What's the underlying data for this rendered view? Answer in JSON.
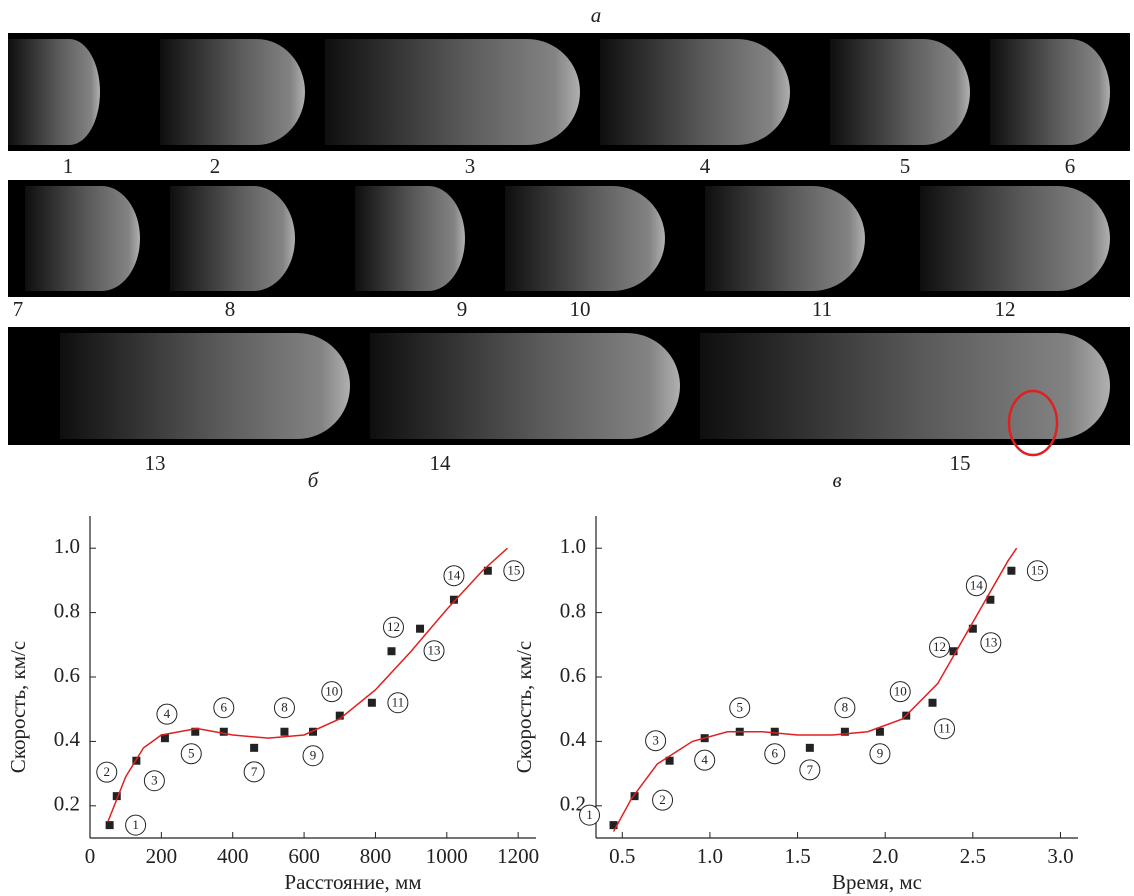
{
  "figure": {
    "panel_label": "а",
    "frame_labels": [
      "1",
      "2",
      "3",
      "4",
      "5",
      "6",
      "7",
      "8",
      "9",
      "10",
      "11",
      "12",
      "13",
      "14",
      "15"
    ]
  },
  "chart_data": [
    {
      "type": "scatter",
      "title": "б",
      "xlabel": "Расстояние, мм",
      "ylabel": "Скорость, км/с",
      "xlim": [
        0,
        1250
      ],
      "ylim": [
        0.1,
        1.1
      ],
      "xticks": [
        0,
        200,
        400,
        600,
        800,
        1000,
        1200
      ],
      "yticks": [
        0.2,
        0.4,
        0.6,
        0.8,
        {
          "value": 1,
          "label": "1.0"
        }
      ],
      "point_labels": [
        "1",
        "2",
        "3",
        "4",
        "5",
        "6",
        "7",
        "8",
        "9",
        "10",
        "11",
        "12",
        "13",
        "14",
        "15"
      ],
      "series": [
        {
          "color": "#222222",
          "marker": "square",
          "x": [
            55,
            75,
            130,
            210,
            295,
            375,
            460,
            545,
            625,
            700,
            790,
            845,
            925,
            1020,
            1115
          ],
          "values": [
            0.14,
            0.23,
            0.34,
            0.41,
            0.43,
            0.43,
            0.38,
            0.43,
            0.43,
            0.48,
            0.52,
            0.68,
            0.75,
            0.84,
            0.93
          ]
        },
        {
          "color": "#e02020",
          "marker": "line",
          "x": [
            50,
            100,
            150,
            200,
            300,
            400,
            500,
            600,
            700,
            800,
            900,
            1000,
            1100,
            1170
          ],
          "values": [
            0.15,
            0.29,
            0.38,
            0.42,
            0.44,
            0.42,
            0.41,
            0.42,
            0.47,
            0.56,
            0.68,
            0.81,
            0.93,
            1.0
          ]
        }
      ]
    },
    {
      "type": "scatter",
      "title": "в",
      "xlabel": "Время, мс",
      "ylabel": "Скорость, км/с",
      "xlim": [
        0.35,
        3.1
      ],
      "ylim": [
        0.1,
        1.1
      ],
      "xticks": [
        0.5,
        {
          "value": 1,
          "label": "1.0"
        },
        1.5,
        {
          "value": 2,
          "label": "2.0"
        },
        2.5,
        {
          "value": 3,
          "label": "3.0"
        }
      ],
      "yticks": [
        0.2,
        0.4,
        0.6,
        0.8,
        {
          "value": 1,
          "label": "1.0"
        }
      ],
      "point_labels": [
        "1",
        "2",
        "3",
        "4",
        "5",
        "6",
        "7",
        "8",
        "9",
        "10",
        "11",
        "12",
        "13",
        "14",
        "15"
      ],
      "series": [
        {
          "color": "#222222",
          "marker": "square",
          "x": [
            0.45,
            0.57,
            0.77,
            0.97,
            1.17,
            1.37,
            1.57,
            1.77,
            1.97,
            2.12,
            2.27,
            2.39,
            2.5,
            2.6,
            2.72
          ],
          "values": [
            0.14,
            0.23,
            0.34,
            0.41,
            0.43,
            0.43,
            0.38,
            0.43,
            0.43,
            0.48,
            0.52,
            0.68,
            0.75,
            0.84,
            0.93
          ]
        },
        {
          "color": "#e02020",
          "marker": "line",
          "x": [
            0.45,
            0.55,
            0.7,
            0.9,
            1.1,
            1.3,
            1.5,
            1.7,
            1.9,
            2.1,
            2.3,
            2.5,
            2.7,
            2.75
          ],
          "values": [
            0.12,
            0.22,
            0.33,
            0.4,
            0.43,
            0.43,
            0.42,
            0.42,
            0.43,
            0.47,
            0.58,
            0.77,
            0.96,
            1.0
          ]
        }
      ]
    }
  ]
}
